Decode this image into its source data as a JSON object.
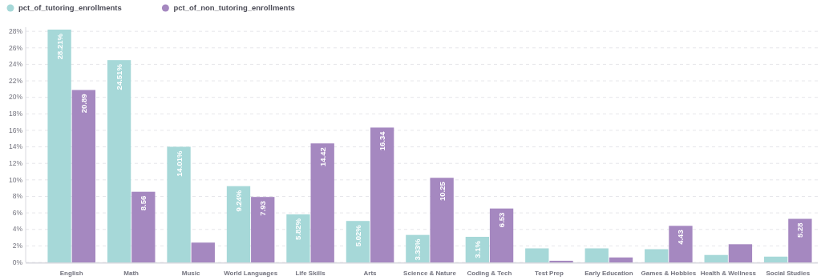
{
  "chart_data": {
    "type": "bar",
    "categories": [
      "English",
      "Math",
      "Music",
      "World Languages",
      "Life Skills",
      "Arts",
      "Science & Nature",
      "Coding & Tech",
      "Test Prep",
      "Early Education",
      "Games & Hobbies",
      "Health & Wellness",
      "Social Studies"
    ],
    "series": [
      {
        "name": "pct_of_tutoring_enrollments",
        "color": "#a6d8d8",
        "values": [
          28.21,
          24.51,
          14.01,
          9.24,
          5.82,
          5.02,
          3.33,
          3.1,
          1.7,
          1.7,
          1.6,
          0.9,
          0.7
        ],
        "value_labels": [
          "28.21%",
          "24.51%",
          "14.01%",
          "9.24%",
          "5.82%",
          "5.02%",
          "3.33%",
          "3.1%",
          null,
          null,
          null,
          null,
          null
        ]
      },
      {
        "name": "pct_of_non_tutoring_enrollments",
        "color": "#a588c0",
        "values": [
          20.89,
          8.56,
          2.4,
          7.93,
          14.42,
          16.34,
          10.25,
          6.53,
          0.2,
          0.6,
          4.43,
          2.2,
          5.28
        ],
        "value_labels": [
          "20.89",
          "8.56",
          null,
          "7.93",
          "14.42",
          "16.34",
          "10.25",
          "6.53",
          null,
          null,
          "4.43",
          null,
          "5.28"
        ]
      }
    ],
    "ylim": [
      0,
      28.5
    ],
    "yticks": [
      {
        "value": 0,
        "label": "0%"
      },
      {
        "value": 2,
        "label": "2%"
      },
      {
        "value": 4,
        "label": "4%"
      },
      {
        "value": 6,
        "label": "6%"
      },
      {
        "value": 8,
        "label": "8%"
      },
      {
        "value": 10,
        "label": "10%"
      },
      {
        "value": 12,
        "label": "12%"
      },
      {
        "value": 14,
        "label": "14%"
      },
      {
        "value": 16,
        "label": "16%"
      },
      {
        "value": 18,
        "label": "18%"
      },
      {
        "value": 20,
        "label": "20%"
      },
      {
        "value": 22,
        "label": "22%"
      },
      {
        "value": 24,
        "label": "24%"
      },
      {
        "value": 26,
        "label": "26%"
      },
      {
        "value": 28,
        "label": "28%"
      }
    ],
    "grid": "y",
    "legend": "top left"
  }
}
